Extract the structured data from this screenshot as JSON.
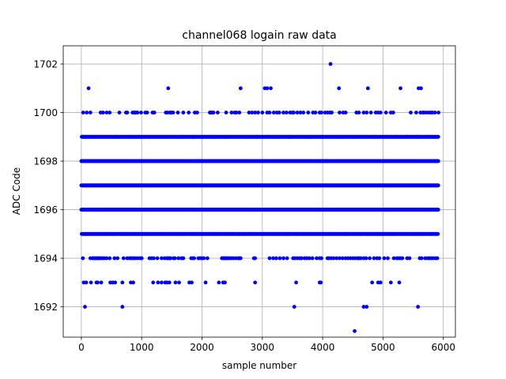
{
  "chart_data": {
    "type": "scatter",
    "title": "channel068 logain raw data",
    "xlabel": "sample number",
    "ylabel": "ADC Code",
    "xlim": [
      -300,
      6200
    ],
    "ylim": [
      1690.75,
      1702.75
    ],
    "xticks": [
      0,
      1000,
      2000,
      3000,
      4000,
      5000,
      6000
    ],
    "yticks": [
      1692,
      1694,
      1696,
      1698,
      1700,
      1702
    ],
    "grid": true,
    "marker_color": "#0000ff",
    "n_samples": 5920,
    "dense_levels": [
      1695,
      1696,
      1697,
      1698,
      1699
    ],
    "sparse_levels": {
      "1694": [
        25,
        150,
        185,
        200,
        220,
        245,
        260,
        280,
        300,
        320,
        350,
        380,
        420,
        470,
        550,
        600,
        700,
        760,
        800,
        830,
        860,
        890,
        930,
        970,
        1000,
        1130,
        1165,
        1200,
        1260,
        1330,
        1380,
        1420,
        1440,
        1460,
        1480,
        1530,
        1550,
        1610,
        1660,
        1690,
        1820,
        1850,
        1870,
        1940,
        1970,
        2000,
        2030,
        2090,
        2330,
        2350,
        2370,
        2390,
        2410,
        2440,
        2460,
        2490,
        2520,
        2560,
        2600,
        2620,
        2640,
        2860,
        2880,
        3120,
        3180,
        3230,
        3290,
        3350,
        3410,
        3510,
        3540,
        3580,
        3620,
        3650,
        3700,
        3740,
        3780,
        3830,
        3900,
        3950,
        3980,
        4080,
        4100,
        4140,
        4180,
        4230,
        4280,
        4330,
        4380,
        4420,
        4460,
        4500,
        4540,
        4580,
        4600,
        4630,
        4680,
        4720,
        4780,
        4850,
        4900,
        4940,
        5020,
        5080,
        5180,
        5230,
        5260,
        5290,
        5320,
        5400,
        5440,
        5610,
        5640,
        5700,
        5740,
        5770,
        5800,
        5830,
        5870,
        5900
      ],
      "1693": [
        40,
        80,
        160,
        250,
        270,
        330,
        480,
        520,
        560,
        680,
        820,
        860,
        1190,
        1270,
        1330,
        1390,
        1420,
        1460,
        1560,
        1620,
        1790,
        1830,
        2060,
        2280,
        2350,
        2380,
        2880,
        3560,
        3950,
        3970,
        4820,
        4920,
        4960,
        5130,
        5270
      ],
      "1692": [
        60,
        680,
        3530,
        4680,
        4730,
        5580
      ],
      "1691": [
        4530
      ],
      "1700": [
        30,
        90,
        150,
        320,
        360,
        420,
        470,
        630,
        740,
        760,
        850,
        880,
        900,
        930,
        990,
        1060,
        1090,
        1180,
        1210,
        1400,
        1430,
        1470,
        1490,
        1520,
        1600,
        1690,
        1780,
        1880,
        1920,
        2130,
        2150,
        2170,
        2190,
        2260,
        2400,
        2490,
        2540,
        2570,
        2620,
        2780,
        2830,
        2880,
        2930,
        3000,
        3080,
        3120,
        3190,
        3240,
        3280,
        3350,
        3400,
        3460,
        3500,
        3520,
        3580,
        3630,
        3680,
        3760,
        3840,
        3880,
        3950,
        3980,
        4040,
        4080,
        4120,
        4150,
        4280,
        4340,
        4380,
        4560,
        4600,
        4680,
        4730,
        4800,
        4880,
        4920,
        4960,
        5050,
        5130,
        5170,
        5460,
        5550,
        5620,
        5660,
        5680,
        5720,
        5760,
        5790,
        5820,
        5860,
        5920
      ],
      "1701": [
        120,
        1440,
        2640,
        3040,
        3080,
        3140,
        4270,
        4750,
        5290,
        5590,
        5630
      ],
      "1702": [
        4130
      ]
    }
  }
}
